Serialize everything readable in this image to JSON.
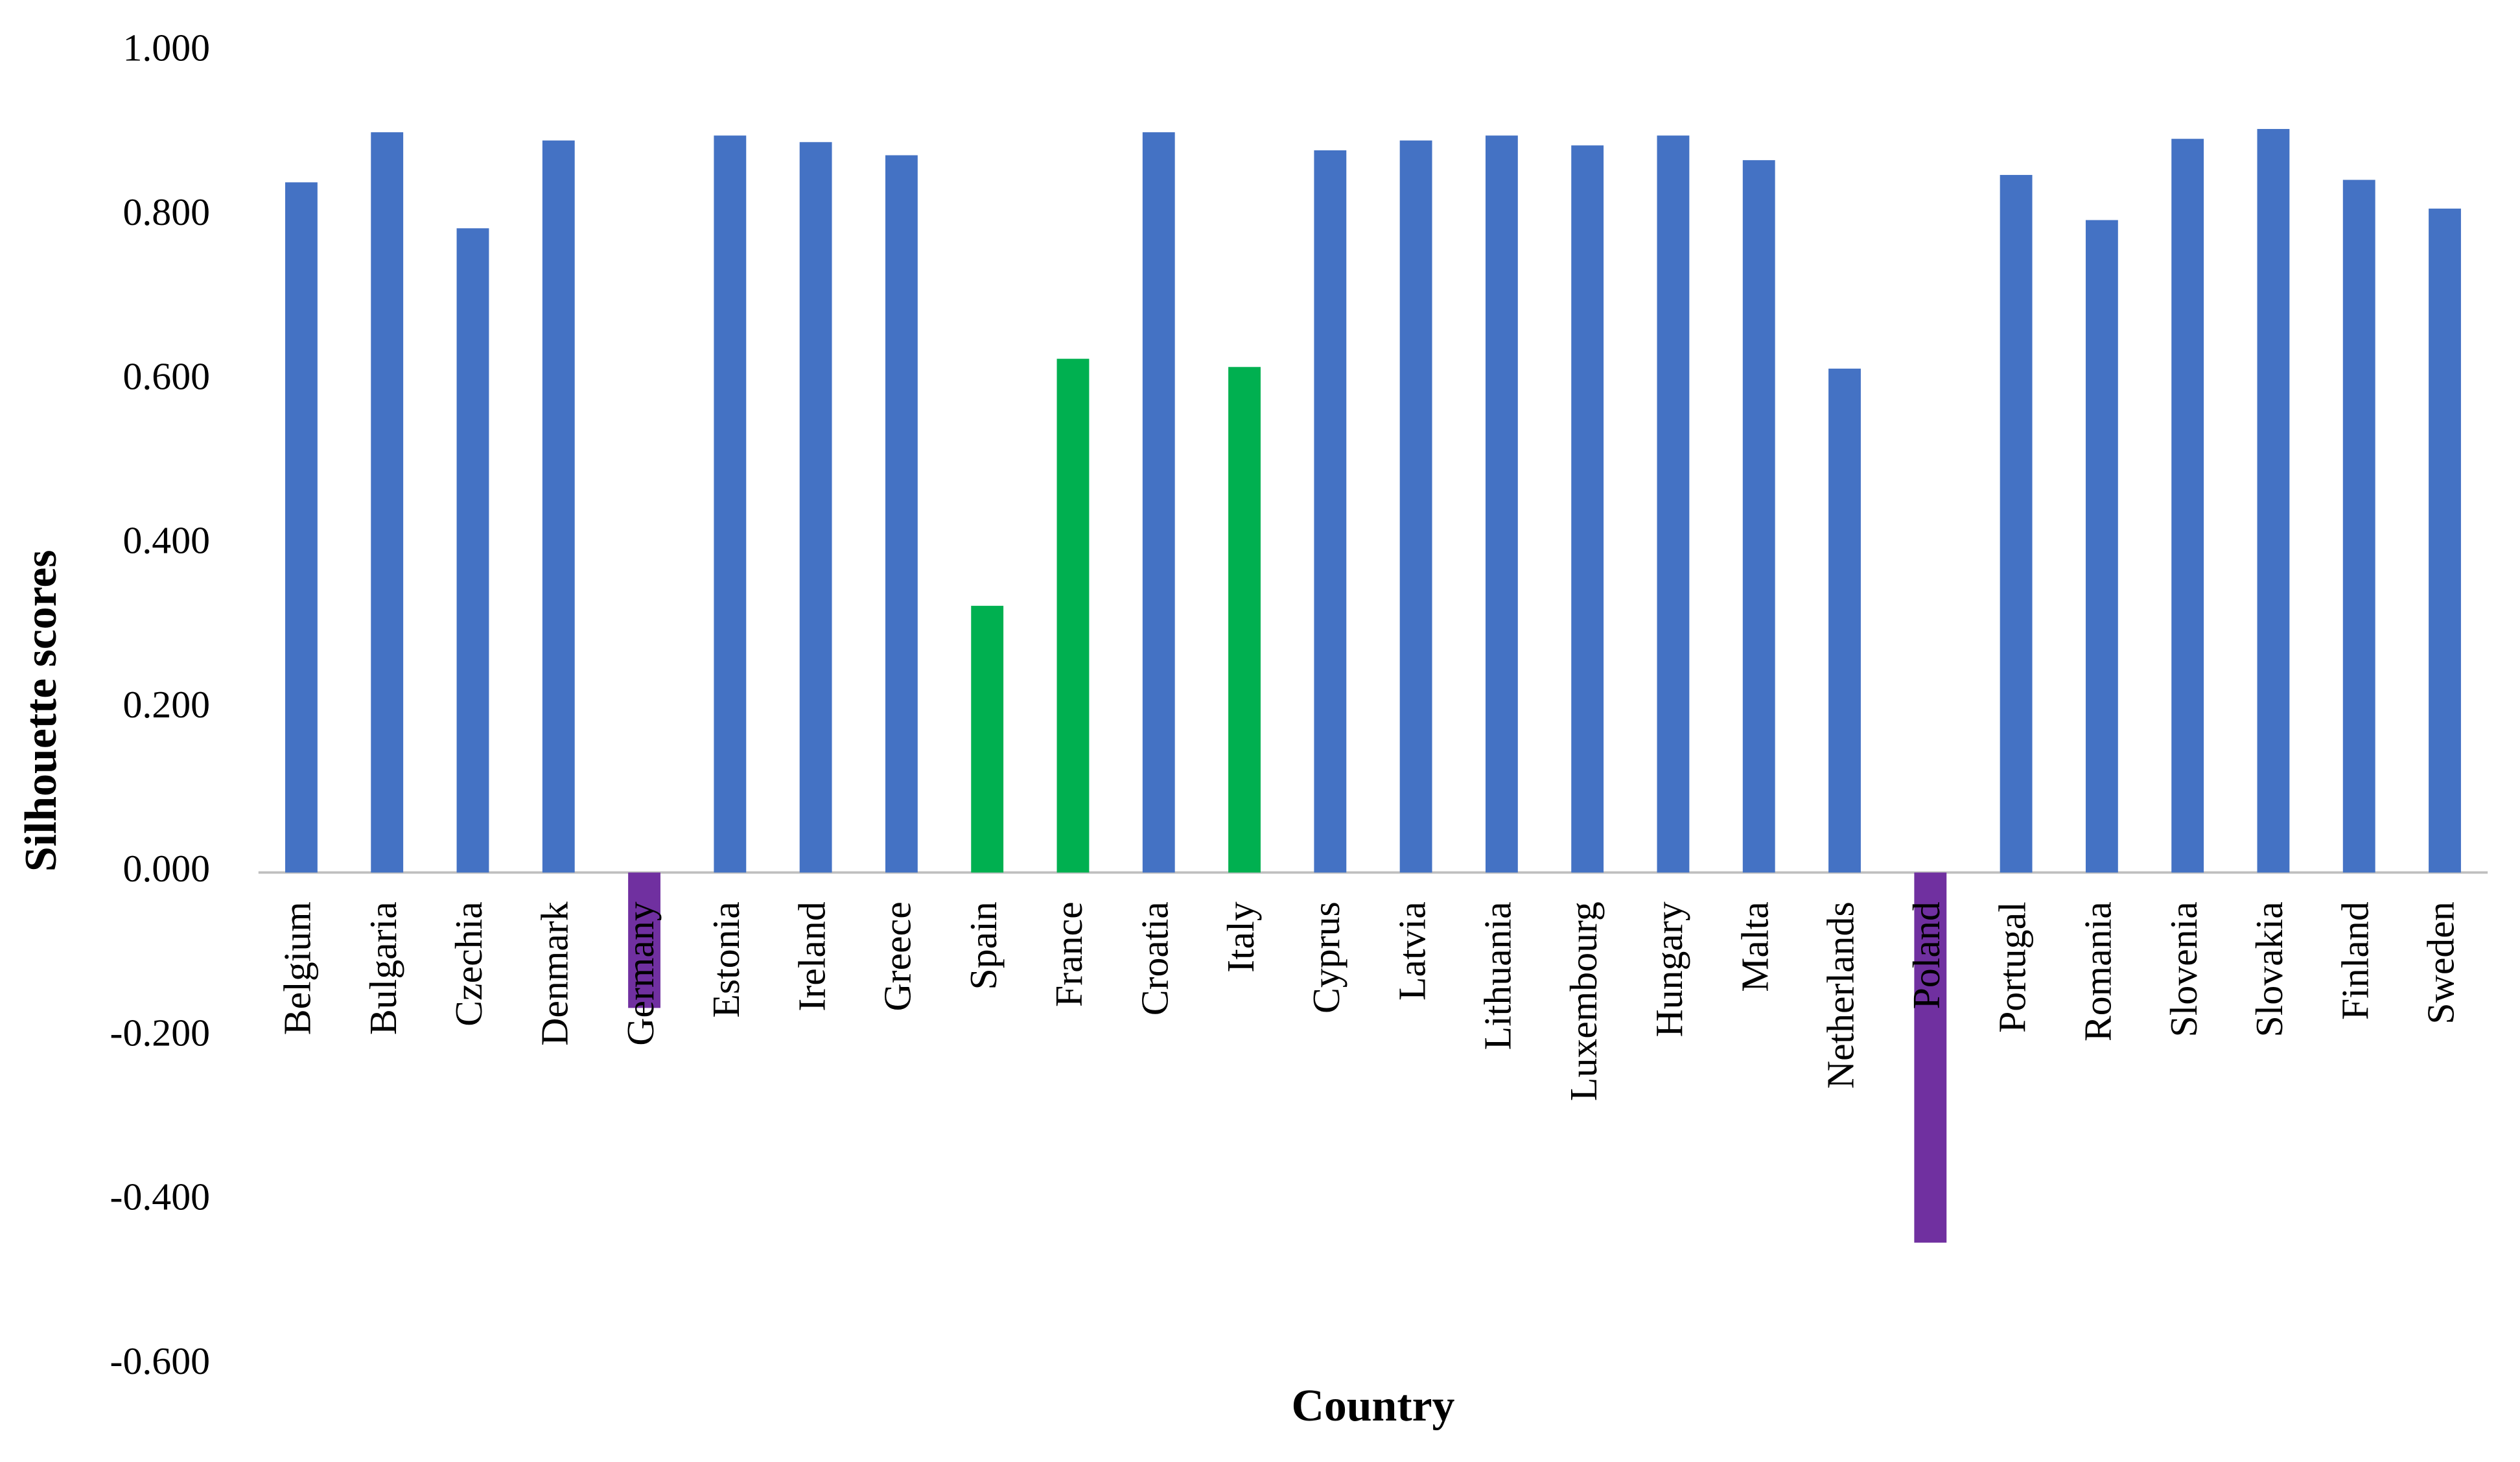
{
  "chart_data": {
    "type": "bar",
    "x_label": "Country",
    "y_label": "Silhouette scores",
    "categories": [
      "Belgium",
      "Bulgaria",
      "Czechia",
      "Denmark",
      "Germany",
      "Estonia",
      "Ireland",
      "Greece",
      "Spain",
      "France",
      "Croatia",
      "Italy",
      "Cyprus",
      "Latvia",
      "Lithuania",
      "Luxembourg",
      "Hungary",
      "Malta",
      "Netherlands",
      "Poland",
      "Portugal",
      "Romania",
      "Slovenia",
      "Slovakia",
      "Finland",
      "Sweden"
    ],
    "values": [
      0.841,
      0.902,
      0.785,
      0.892,
      -0.165,
      0.898,
      0.89,
      0.874,
      0.325,
      0.626,
      0.902,
      0.616,
      0.88,
      0.892,
      0.898,
      0.886,
      0.898,
      0.868,
      0.614,
      -0.451,
      0.85,
      0.795,
      0.894,
      0.906,
      0.844,
      0.809
    ],
    "colors": [
      "#4472c4",
      "#4472c4",
      "#4472c4",
      "#4472c4",
      "#7030a0",
      "#4472c4",
      "#4472c4",
      "#4472c4",
      "#00b050",
      "#00b050",
      "#4472c4",
      "#00b050",
      "#4472c4",
      "#4472c4",
      "#4472c4",
      "#4472c4",
      "#4472c4",
      "#4472c4",
      "#4472c4",
      "#7030a0",
      "#4472c4",
      "#4472c4",
      "#4472c4",
      "#4472c4",
      "#4472c4",
      "#4472c4"
    ],
    "ylim": [
      -0.6,
      1.0
    ],
    "yticks": [
      {
        "value": 1.0,
        "label": "1.000"
      },
      {
        "value": 0.8,
        "label": "0.800"
      },
      {
        "value": 0.6,
        "label": "0.600"
      },
      {
        "value": 0.4,
        "label": "0.400"
      },
      {
        "value": 0.2,
        "label": "0.200"
      },
      {
        "value": 0,
        "label": "0.000"
      },
      {
        "value": -0.2,
        "label": "-0.200"
      },
      {
        "value": -0.4,
        "label": "-0.400"
      },
      {
        "value": -0.6,
        "label": "-0.600"
      }
    ],
    "grid": false
  }
}
